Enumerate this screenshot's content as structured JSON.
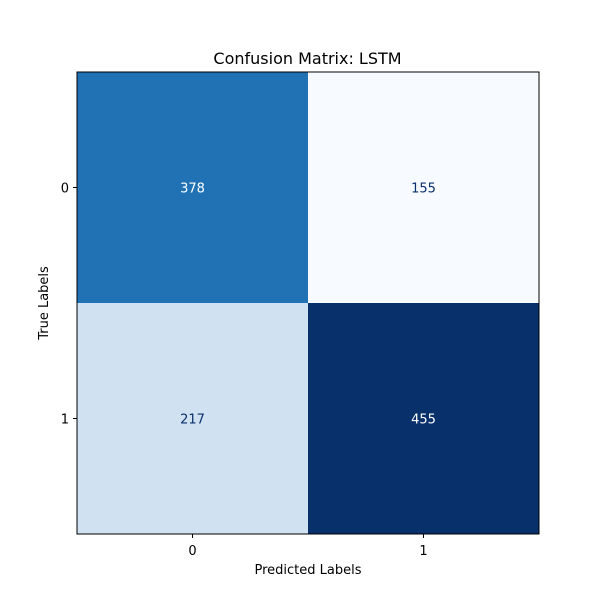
{
  "chart_data": {
    "type": "heatmap",
    "title": "Confusion Matrix: LSTM",
    "xlabel": "Predicted Labels",
    "ylabel": "True Labels",
    "x_categories": [
      "0",
      "1"
    ],
    "y_categories": [
      "0",
      "1"
    ],
    "matrix": [
      [
        378,
        155
      ],
      [
        217,
        455
      ]
    ],
    "colormap": "Blues",
    "cell_colors": [
      [
        "#2171b5",
        "#f7fbff"
      ],
      [
        "#d0e1f2",
        "#08306b"
      ]
    ],
    "text_colors": [
      [
        "#ffffff",
        "#08306b"
      ],
      [
        "#08306b",
        "#ffffff"
      ]
    ],
    "grid": false,
    "colorbar": false
  }
}
